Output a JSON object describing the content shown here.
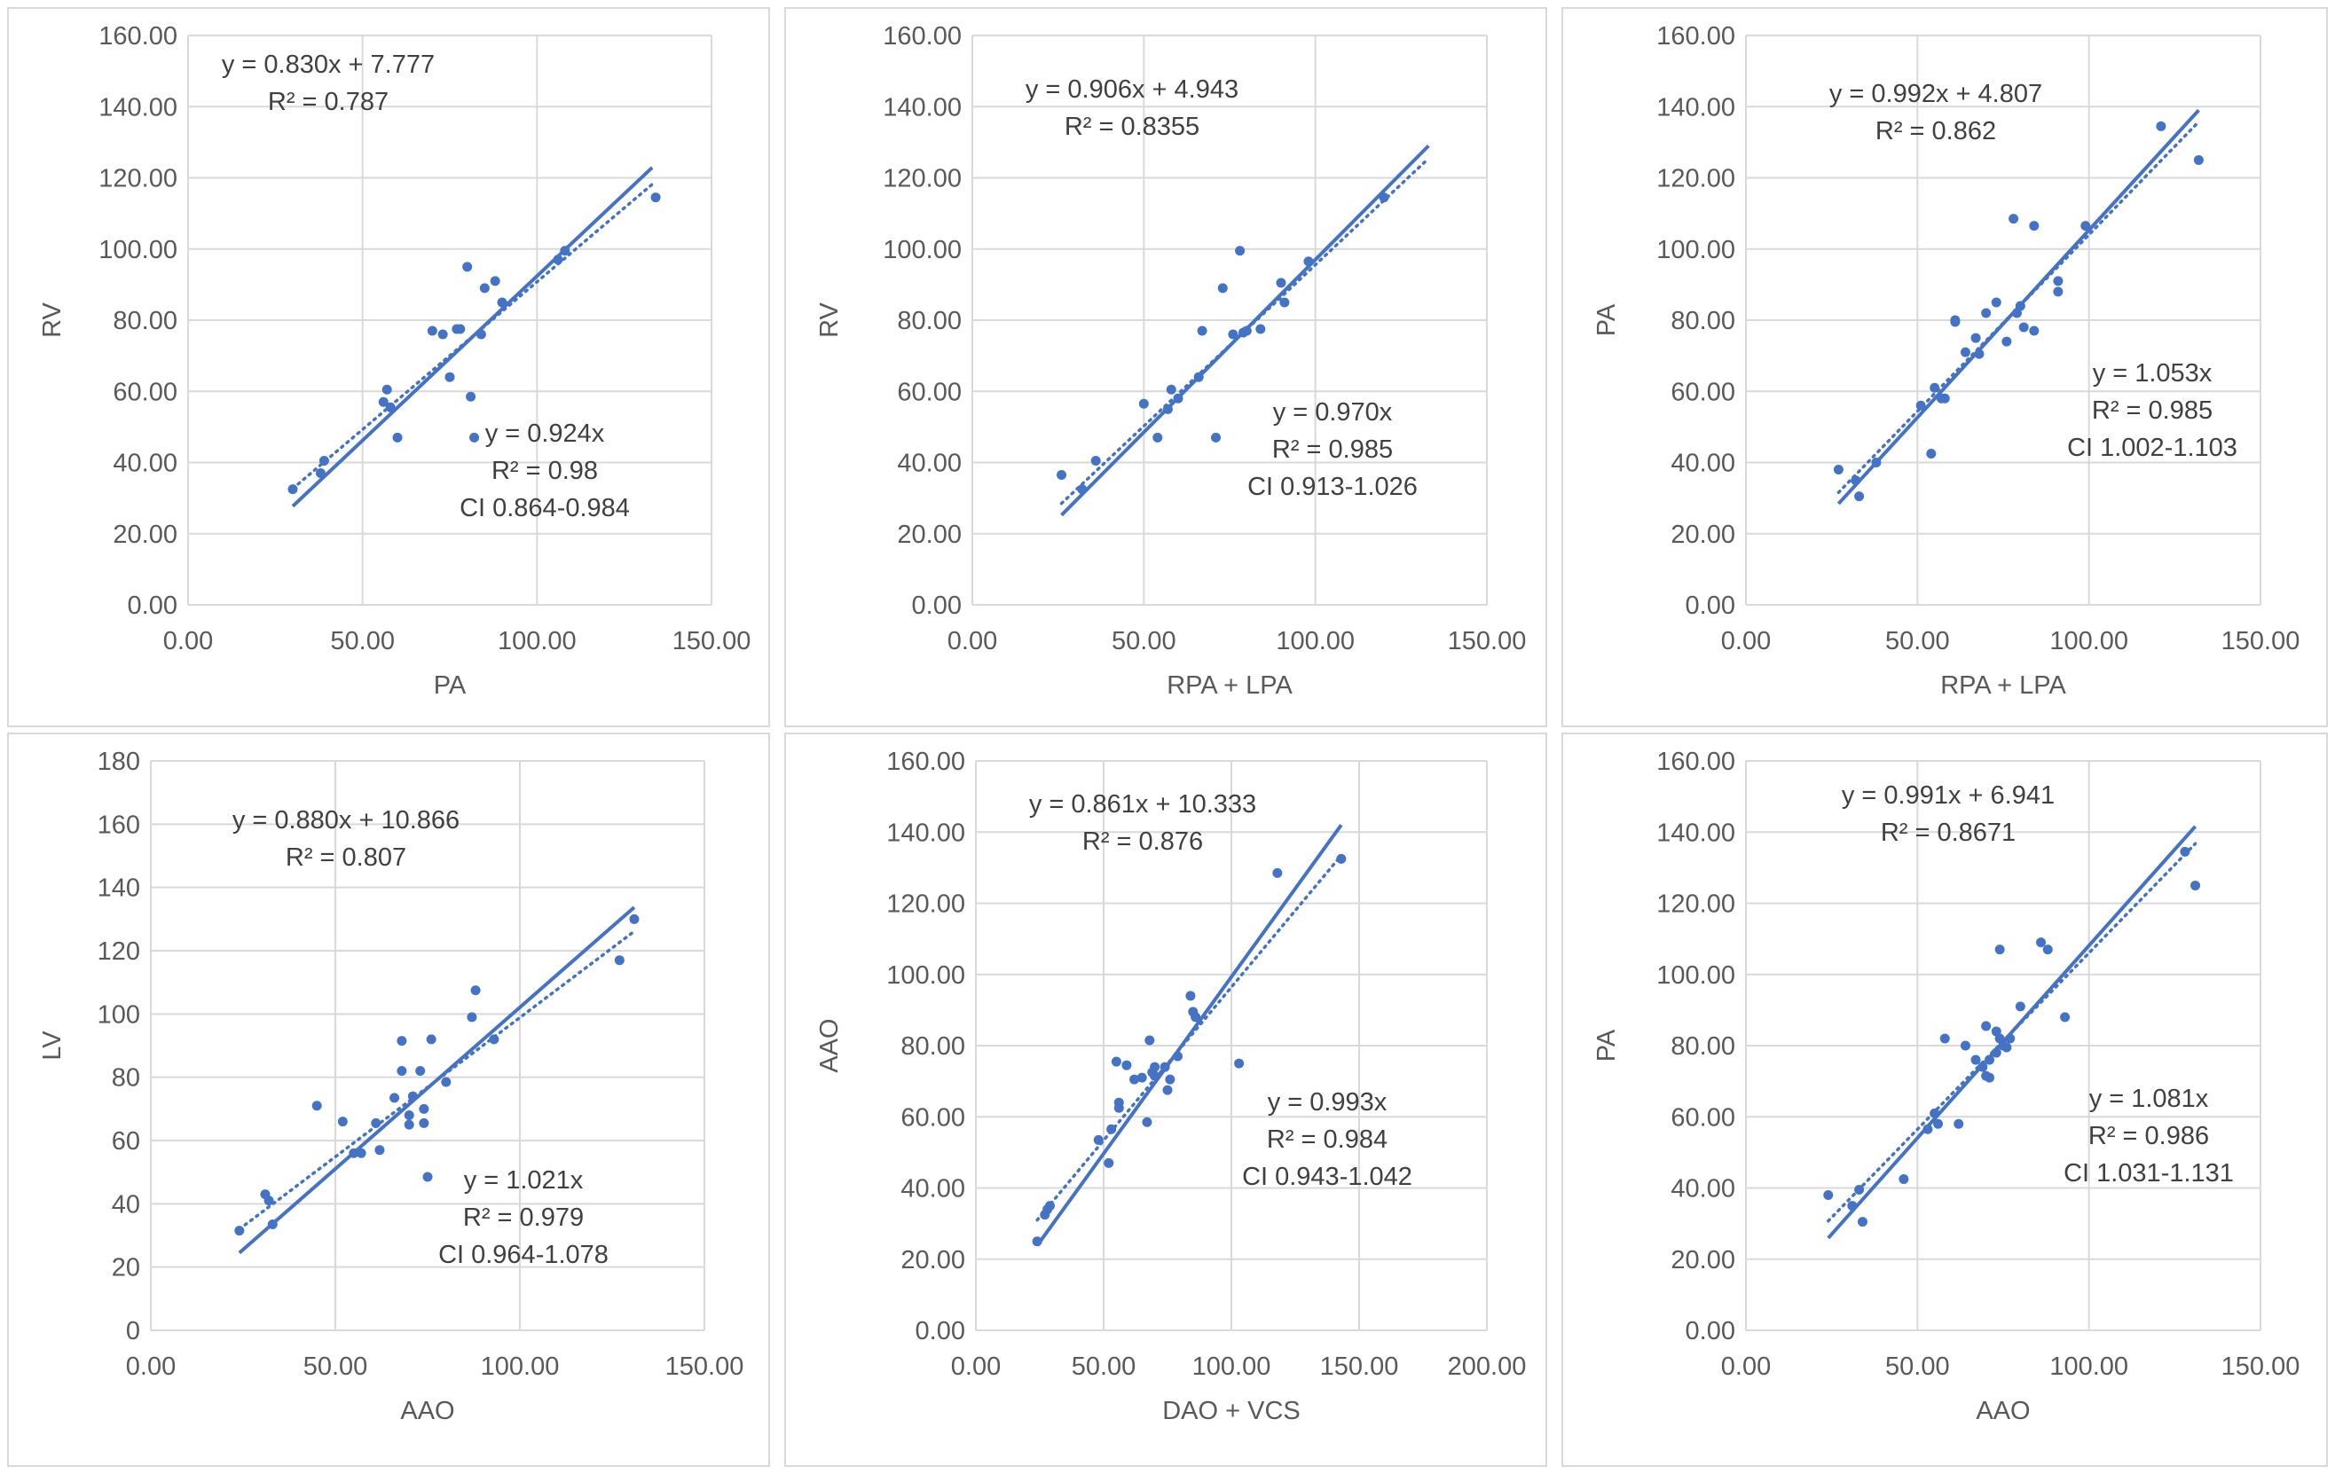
{
  "chart_data": [
    {
      "type": "scatter",
      "xlabel": "PA",
      "ylabel": "RV",
      "xlim": [
        0,
        150
      ],
      "ylim": [
        0,
        160
      ],
      "xticks": [
        "0.00",
        "50.00",
        "100.00",
        "150.00"
      ],
      "yticks": [
        "0.00",
        "20.00",
        "40.00",
        "60.00",
        "80.00",
        "100.00",
        "120.00",
        "140.00",
        "160.00"
      ],
      "color": "#4472c4",
      "points": [
        [
          30,
          32.5
        ],
        [
          38,
          37
        ],
        [
          39,
          40.5
        ],
        [
          56,
          57
        ],
        [
          57,
          60.5
        ],
        [
          58,
          55.5
        ],
        [
          60,
          47
        ],
        [
          70,
          77
        ],
        [
          73,
          76
        ],
        [
          75,
          64
        ],
        [
          77,
          77.5
        ],
        [
          78,
          77.5
        ],
        [
          80,
          95
        ],
        [
          81,
          58.5
        ],
        [
          82,
          47
        ],
        [
          84,
          76
        ],
        [
          85,
          89
        ],
        [
          88,
          91
        ],
        [
          90,
          85
        ],
        [
          106,
          97
        ],
        [
          108,
          99.5
        ],
        [
          134,
          114.5
        ]
      ],
      "fits": [
        {
          "style": "solid",
          "x_range": [
            30,
            133
          ],
          "slope": 0.924,
          "intercept": 0
        },
        {
          "style": "dotted",
          "x_range": [
            30,
            133
          ],
          "slope": 0.83,
          "intercept": 7.777
        }
      ],
      "annotations": [
        {
          "lines": [
            "y = 0.830x + 7.777",
            "R² = 0.787"
          ]
        },
        {
          "lines": [
            "y = 0.924x",
            "R² = 0.98",
            "CI 0.864-0.984"
          ]
        }
      ]
    },
    {
      "type": "scatter",
      "xlabel": "RPA + LPA",
      "ylabel": "RV",
      "xlim": [
        0,
        150
      ],
      "ylim": [
        0,
        160
      ],
      "xticks": [
        "0.00",
        "50.00",
        "100.00",
        "150.00"
      ],
      "yticks": [
        "0.00",
        "20.00",
        "40.00",
        "60.00",
        "80.00",
        "100.00",
        "120.00",
        "140.00",
        "160.00"
      ],
      "color": "#4472c4",
      "points": [
        [
          26,
          36.5
        ],
        [
          32,
          32.5
        ],
        [
          36,
          40.5
        ],
        [
          50,
          56.5
        ],
        [
          54,
          47
        ],
        [
          57,
          55
        ],
        [
          58,
          60.5
        ],
        [
          60,
          58
        ],
        [
          66,
          64
        ],
        [
          67,
          77
        ],
        [
          71,
          47
        ],
        [
          73,
          89
        ],
        [
          76,
          76
        ],
        [
          78,
          99.5
        ],
        [
          79,
          76.5
        ],
        [
          80,
          77
        ],
        [
          84,
          77.5
        ],
        [
          90,
          90.5
        ],
        [
          91,
          85
        ],
        [
          98,
          96.5
        ],
        [
          120,
          114.5
        ]
      ],
      "fits": [
        {
          "style": "solid",
          "x_range": [
            26,
            133
          ],
          "slope": 0.97,
          "intercept": 0
        },
        {
          "style": "dotted",
          "x_range": [
            26,
            133
          ],
          "slope": 0.906,
          "intercept": 4.943
        }
      ],
      "annotations": [
        {
          "lines": [
            "y = 0.906x + 4.943",
            "R² = 0.8355"
          ]
        },
        {
          "lines": [
            "y = 0.970x",
            "R² = 0.985",
            "CI 0.913-1.026"
          ]
        }
      ]
    },
    {
      "type": "scatter",
      "xlabel": "RPA + LPA",
      "ylabel": "PA",
      "xlim": [
        0,
        150
      ],
      "ylim": [
        0,
        160
      ],
      "xticks": [
        "0.00",
        "50.00",
        "100.00",
        "150.00"
      ],
      "yticks": [
        "0.00",
        "20.00",
        "40.00",
        "60.00",
        "80.00",
        "100.00",
        "120.00",
        "140.00",
        "160.00"
      ],
      "color": "#4472c4",
      "points": [
        [
          27,
          38
        ],
        [
          32,
          35
        ],
        [
          33,
          30.5
        ],
        [
          38,
          40
        ],
        [
          51,
          56
        ],
        [
          54,
          42.5
        ],
        [
          55,
          61
        ],
        [
          57,
          58
        ],
        [
          58,
          58
        ],
        [
          61,
          80
        ],
        [
          61,
          79.5
        ],
        [
          64,
          71
        ],
        [
          67,
          75
        ],
        [
          68,
          70.5
        ],
        [
          70,
          82
        ],
        [
          73,
          85
        ],
        [
          76,
          74
        ],
        [
          78,
          108.5
        ],
        [
          79,
          82
        ],
        [
          80,
          84
        ],
        [
          81,
          78
        ],
        [
          84,
          77
        ],
        [
          84,
          106.5
        ],
        [
          91,
          91
        ],
        [
          91,
          88
        ],
        [
          99,
          106.5
        ],
        [
          121,
          134.5
        ],
        [
          132,
          125
        ]
      ],
      "fits": [
        {
          "style": "solid",
          "x_range": [
            27,
            132
          ],
          "slope": 1.053,
          "intercept": 0
        },
        {
          "style": "dotted",
          "x_range": [
            27,
            132
          ],
          "slope": 0.992,
          "intercept": 4.807
        }
      ],
      "annotations": [
        {
          "lines": [
            "y = 0.992x + 4.807",
            "R² = 0.862"
          ]
        },
        {
          "lines": [
            "y = 1.053x",
            "R² = 0.985",
            "CI 1.002-1.103"
          ]
        }
      ]
    },
    {
      "type": "scatter",
      "xlabel": "AAO",
      "ylabel": "LV",
      "xlim": [
        0,
        150
      ],
      "ylim": [
        0,
        180
      ],
      "xticks": [
        "0.00",
        "50.00",
        "100.00",
        "150.00"
      ],
      "yticks": [
        "0",
        "20",
        "40",
        "60",
        "80",
        "100",
        "120",
        "140",
        "160",
        "180"
      ],
      "color": "#4472c4",
      "points": [
        [
          24,
          31.5
        ],
        [
          31,
          43
        ],
        [
          32,
          41
        ],
        [
          33,
          33.5
        ],
        [
          45,
          71
        ],
        [
          52,
          66
        ],
        [
          55,
          56
        ],
        [
          57,
          56
        ],
        [
          61,
          65.5
        ],
        [
          62,
          57
        ],
        [
          66,
          73.5
        ],
        [
          68,
          82
        ],
        [
          68,
          91.5
        ],
        [
          70,
          68
        ],
        [
          70,
          65
        ],
        [
          71,
          74
        ],
        [
          73,
          82
        ],
        [
          74,
          70
        ],
        [
          74,
          65.5
        ],
        [
          75,
          48.5
        ],
        [
          76,
          92
        ],
        [
          80,
          78.5
        ],
        [
          87,
          99
        ],
        [
          88,
          107.5
        ],
        [
          93,
          92
        ],
        [
          127,
          117
        ],
        [
          131,
          130
        ]
      ],
      "fits": [
        {
          "style": "solid",
          "x_range": [
            24,
            131
          ],
          "slope": 1.021,
          "intercept": 0
        },
        {
          "style": "dotted",
          "x_range": [
            24,
            131
          ],
          "slope": 0.88,
          "intercept": 10.866
        }
      ],
      "annotations": [
        {
          "lines": [
            "y = 0.880x + 10.866",
            "R² = 0.807"
          ]
        },
        {
          "lines": [
            "y = 1.021x",
            "R² = 0.979",
            "CI 0.964-1.078"
          ]
        }
      ]
    },
    {
      "type": "scatter",
      "xlabel": "DAO + VCS",
      "ylabel": "AAO",
      "xlim": [
        0,
        200
      ],
      "ylim": [
        0,
        160
      ],
      "xticks": [
        "0.00",
        "50.00",
        "100.00",
        "150.00",
        "200.00"
      ],
      "yticks": [
        "0.00",
        "20.00",
        "40.00",
        "60.00",
        "80.00",
        "100.00",
        "120.00",
        "140.00",
        "160.00"
      ],
      "color": "#4472c4",
      "points": [
        [
          24,
          25
        ],
        [
          27,
          32.5
        ],
        [
          28,
          34
        ],
        [
          29,
          35
        ],
        [
          48,
          53.5
        ],
        [
          52,
          47
        ],
        [
          53,
          56.5
        ],
        [
          55,
          75.5
        ],
        [
          56,
          64
        ],
        [
          56,
          62.5
        ],
        [
          59,
          74.5
        ],
        [
          62,
          70.5
        ],
        [
          65,
          71
        ],
        [
          67,
          58.5
        ],
        [
          68,
          81.5
        ],
        [
          69,
          72.5
        ],
        [
          70,
          74
        ],
        [
          70,
          71.5
        ],
        [
          74,
          74
        ],
        [
          75,
          67.5
        ],
        [
          76,
          70.5
        ],
        [
          79,
          77
        ],
        [
          84,
          94
        ],
        [
          85,
          89.5
        ],
        [
          86,
          88
        ],
        [
          103,
          75
        ],
        [
          118,
          128.5
        ],
        [
          143,
          132.5
        ]
      ],
      "fits": [
        {
          "style": "solid",
          "x_range": [
            24,
            143
          ],
          "slope": 0.993,
          "intercept": 0
        },
        {
          "style": "dotted",
          "x_range": [
            24,
            143
          ],
          "slope": 0.861,
          "intercept": 10.333
        }
      ],
      "annotations": [
        {
          "lines": [
            "y = 0.861x + 10.333",
            "R² = 0.876"
          ]
        },
        {
          "lines": [
            "y = 0.993x",
            "R² = 0.984",
            "CI 0.943-1.042"
          ]
        }
      ]
    },
    {
      "type": "scatter",
      "xlabel": "AAO",
      "ylabel": "PA",
      "xlim": [
        0,
        150
      ],
      "ylim": [
        0,
        160
      ],
      "xticks": [
        "0.00",
        "50.00",
        "100.00",
        "150.00"
      ],
      "yticks": [
        "0.00",
        "20.00",
        "40.00",
        "60.00",
        "80.00",
        "100.00",
        "120.00",
        "140.00",
        "160.00"
      ],
      "color": "#4472c4",
      "points": [
        [
          24,
          38
        ],
        [
          31,
          35
        ],
        [
          33,
          39.5
        ],
        [
          34,
          30.5
        ],
        [
          46,
          42.5
        ],
        [
          53,
          56.5
        ],
        [
          55,
          61
        ],
        [
          56,
          58
        ],
        [
          58,
          82
        ],
        [
          62,
          58
        ],
        [
          64,
          80
        ],
        [
          67,
          76
        ],
        [
          69,
          74
        ],
        [
          70,
          85.5
        ],
        [
          70,
          71.5
        ],
        [
          71,
          71
        ],
        [
          71,
          76
        ],
        [
          73,
          84
        ],
        [
          73,
          78
        ],
        [
          74,
          82
        ],
        [
          74,
          107
        ],
        [
          75,
          80
        ],
        [
          76,
          79.5
        ],
        [
          77,
          82
        ],
        [
          80,
          91
        ],
        [
          86,
          109
        ],
        [
          88,
          107
        ],
        [
          93,
          88
        ],
        [
          128,
          134.5
        ],
        [
          131,
          125
        ]
      ],
      "fits": [
        {
          "style": "solid",
          "x_range": [
            24,
            131
          ],
          "slope": 1.081,
          "intercept": 0
        },
        {
          "style": "dotted",
          "x_range": [
            24,
            131
          ],
          "slope": 0.991,
          "intercept": 6.941
        }
      ],
      "annotations": [
        {
          "lines": [
            "y = 0.991x + 6.941",
            "R² = 0.8671"
          ]
        },
        {
          "lines": [
            "y = 1.081x",
            "R² = 0.986",
            "CI 1.031-1.131"
          ]
        }
      ]
    }
  ]
}
